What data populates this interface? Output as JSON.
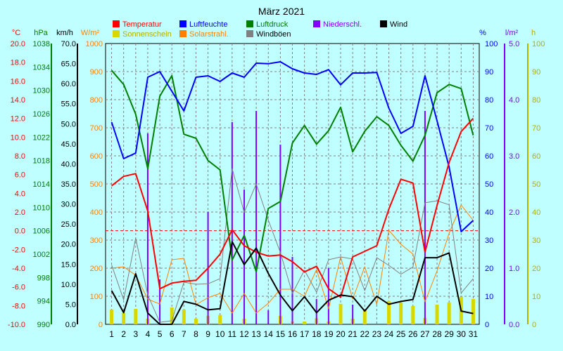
{
  "chart_data": {
    "type": "line",
    "title": "März 2021",
    "x": [
      1,
      2,
      3,
      4,
      5,
      6,
      7,
      8,
      9,
      10,
      11,
      12,
      13,
      14,
      15,
      16,
      17,
      18,
      19,
      20,
      21,
      22,
      23,
      24,
      25,
      26,
      27,
      28,
      29,
      30,
      31
    ],
    "axes": [
      {
        "unit": "°C",
        "color": "#ff0000",
        "range": [
          -10,
          20
        ],
        "ticks": [
          "20.0",
          "18.0",
          "16.0",
          "14.0",
          "12.0",
          "10.0",
          "8.0",
          "6.0",
          "4.0",
          "2.0",
          "0.0",
          "-2.0",
          "-4.0",
          "-6.0",
          "-8.0",
          "-10.0"
        ]
      },
      {
        "unit": "hPa",
        "color": "#008000",
        "range": [
          990,
          1038
        ],
        "ticks": [
          "1038",
          "1034",
          "1030",
          "1026",
          "1022",
          "1018",
          "1014",
          "1010",
          "1006",
          "1002",
          "998",
          "994",
          "990"
        ]
      },
      {
        "unit": "km/h",
        "color": "#000000",
        "range": [
          0,
          70
        ],
        "ticks": [
          "70.0",
          "65.0",
          "60.0",
          "55.0",
          "50.0",
          "45.0",
          "40.0",
          "35.0",
          "30.0",
          "25.0",
          "20.0",
          "15.0",
          "10.0",
          "5.0",
          "0.0"
        ]
      },
      {
        "unit": "W/m²",
        "color": "#ff8000",
        "range": [
          0,
          1000
        ],
        "ticks": [
          "1000",
          "900",
          "800",
          "700",
          "600",
          "500",
          "400",
          "300",
          "200",
          "100",
          "0"
        ]
      },
      {
        "unit": "%",
        "color": "#0000ff",
        "range": [
          0,
          100
        ],
        "ticks": [
          "100",
          "90",
          "80",
          "70",
          "60",
          "50",
          "40",
          "30",
          "20",
          "10",
          "0"
        ]
      },
      {
        "unit": "l/m²",
        "color": "#8000ff",
        "range": [
          0,
          5
        ],
        "ticks": [
          "5.0",
          "4.0",
          "3.0",
          "2.0",
          "1.0",
          "0.0"
        ]
      },
      {
        "unit": "h",
        "color": "#b0b000",
        "range": [
          0,
          100
        ],
        "ticks": [
          "100",
          "90",
          "80",
          "70",
          "60",
          "50",
          "40",
          "30",
          "20",
          "10",
          "0"
        ]
      }
    ],
    "series": [
      {
        "name": "Temperatur",
        "color": "#ff0000",
        "axis": "°C",
        "values": [
          4.8,
          5.8,
          6.1,
          2.1,
          -6.2,
          -5.6,
          -5.4,
          -5.3,
          -4.0,
          -2.5,
          0.1,
          -1.6,
          -2.3,
          -2.7,
          -2.6,
          -3.3,
          -4.4,
          -3.8,
          -6.2,
          -7.1,
          -2.8,
          -2.2,
          -1.6,
          2.3,
          5.5,
          5.1,
          -2.3,
          2.7,
          7.3,
          10.6,
          12.0
        ]
      },
      {
        "name": "Luftfeuchte",
        "color": "#0000ff",
        "axis": "%",
        "values": [
          72,
          59,
          61,
          88,
          90,
          83,
          76,
          88,
          88.5,
          86.5,
          89.5,
          88,
          93,
          92.8,
          93.5,
          91,
          89.5,
          89,
          90.7,
          85.3,
          89.5,
          89.5,
          89.7,
          77,
          68,
          70.5,
          88.5,
          72.5,
          56,
          33,
          37
        ]
      },
      {
        "name": "Luftdruck",
        "color": "#008000",
        "axis": "hPa",
        "values": [
          1033.4,
          1031.0,
          1025.9,
          1016.6,
          1029.0,
          1032.5,
          1022.5,
          1021.8,
          1018.0,
          1016.4,
          1001.0,
          1005.2,
          999.0,
          1009.8,
          1011.0,
          1021.0,
          1024.0,
          1020.8,
          1023.1,
          1027.1,
          1019.5,
          1023.0,
          1025.5,
          1024.0,
          1020.6,
          1017.9,
          1022.3,
          1029.6,
          1031.0,
          1030.3,
          1022.3
        ]
      },
      {
        "name": "Wind",
        "color": "#000000",
        "axis": "km/h",
        "values": [
          8.4,
          2.9,
          12.6,
          2.8,
          0,
          0,
          5.7,
          5.0,
          3.6,
          3.9,
          20.6,
          14.9,
          19.0,
          12.7,
          7.3,
          3.4,
          6.9,
          2.9,
          6.0,
          7.3,
          6.9,
          3.3,
          7.0,
          5.0,
          5.7,
          6.2,
          16.6,
          16.6,
          17.8,
          3.3,
          2.7
        ]
      },
      {
        "name": "Windböen",
        "color": "#808080",
        "axis": "km/h",
        "values": [
          14.8,
          6.1,
          21.5,
          7.3,
          0.5,
          0.9,
          10.5,
          10.0,
          10.1,
          11.4,
          38.8,
          27.9,
          35.0,
          26.0,
          17.9,
          7.7,
          13.5,
          8.0,
          16.1,
          16.8,
          16.3,
          8.4,
          16.6,
          14.7,
          12.5,
          14.3,
          30.3,
          30.8,
          29.8,
          7.8,
          11.4
        ]
      },
      {
        "name": "Solarstrahl.",
        "color": "#ff8000",
        "axis": "W/m²",
        "values": [
          200,
          205,
          175,
          90,
          72,
          230,
          235,
          70,
          95,
          110,
          40,
          110,
          40,
          75,
          125,
          125,
          100,
          195,
          55,
          240,
          90,
          205,
          70,
          335,
          285,
          250,
          80,
          190,
          325,
          425,
          370
        ]
      }
    ],
    "bars": [
      {
        "name": "Sonnenschein",
        "color": "#d8d800",
        "axis": "h",
        "values": [
          5.3,
          4.0,
          5.5,
          2.0,
          0,
          6.0,
          5.3,
          2.0,
          3.0,
          3.3,
          0,
          2.0,
          0,
          0,
          3.0,
          1.0,
          1.0,
          2.2,
          1.0,
          7.3,
          2.0,
          5.0,
          0,
          8.3,
          7.8,
          6.5,
          2.3,
          7.0,
          7.8,
          9.8,
          9.0
        ]
      },
      {
        "name": "Niederschl.",
        "color": "#8000ff",
        "axis": "l/m²",
        "values": [
          0,
          0,
          0,
          3.4,
          0.8,
          0,
          0,
          0,
          2.0,
          0,
          3.6,
          2.4,
          3.8,
          0.25,
          3.2,
          1.2,
          0,
          0.45,
          1.0,
          0,
          0.35,
          0,
          0,
          0,
          0,
          0,
          3.8,
          0,
          0,
          0,
          0
        ]
      }
    ],
    "legend": [
      "Temperatur",
      "Luftfeuchte",
      "Luftdruck",
      "Niederschl.",
      "Wind",
      "Sonnenschein",
      "Solarstrahl.",
      "Windböen"
    ],
    "grid": true,
    "reference_lines": [
      {
        "axis": "°C",
        "value": 0,
        "color": "#ff0000",
        "style": "dashed"
      }
    ]
  }
}
